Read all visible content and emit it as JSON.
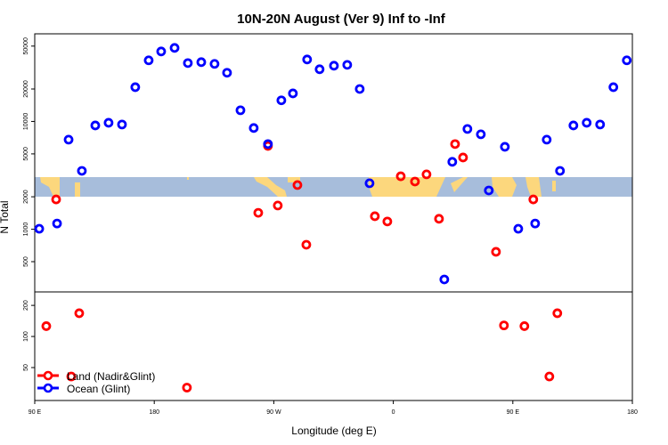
{
  "chart_data": {
    "type": "scatter",
    "title": "10N-20N August (Ver 9)   Inf to -Inf",
    "xlabel": "Longitude (deg E)",
    "ylabel": "N Total",
    "xlim": [
      90,
      540
    ],
    "x_ticks": [
      {
        "v": 90,
        "label": "90 E"
      },
      {
        "v": 180,
        "label": "180"
      },
      {
        "v": 270,
        "label": "90 W"
      },
      {
        "v": 360,
        "label": "0"
      },
      {
        "v": 450,
        "label": "90 E"
      },
      {
        "v": 540,
        "label": "180"
      }
    ],
    "panels": [
      {
        "name": "top",
        "yscale": "log",
        "ylim": [
          262,
          65000
        ],
        "y_ticks": [
          {
            "v": 500,
            "label": "500"
          },
          {
            "v": 1000,
            "label": "1000"
          },
          {
            "v": 2000,
            "label": "2000"
          },
          {
            "v": 5000,
            "label": "5000"
          },
          {
            "v": 10000,
            "label": "10000"
          },
          {
            "v": 20000,
            "label": "20000"
          },
          {
            "v": 50000,
            "label": "50000"
          }
        ]
      },
      {
        "name": "bottom",
        "yscale": "log",
        "ylim": [
          24,
          270
        ],
        "y_ticks": [
          {
            "v": 50,
            "label": "50"
          },
          {
            "v": 100,
            "label": "100"
          },
          {
            "v": 200,
            "label": "200"
          }
        ]
      }
    ],
    "series": [
      {
        "name": "Land (Nadir&Glint)",
        "color": "#ff0000",
        "panel": "top",
        "x": [
          106.1,
          258.3,
          265.6,
          273,
          287.8,
          294.5,
          346.1,
          355.5,
          365.6,
          376.3,
          385.0,
          394.4,
          406.5,
          412.5,
          437.3,
          465.4
        ],
        "y": [
          1890,
          1420,
          5930,
          1660,
          2570,
          718,
          1320,
          1180,
          3100,
          2770,
          3230,
          1250,
          6170,
          4630,
          617,
          1890
        ]
      },
      {
        "name": "Land (Nadir&Glint)",
        "color": "#ff0000",
        "panel": "bottom",
        "x": [
          98.7,
          123.5,
          117.5,
          204.6,
          443.3,
          458.7,
          477.5,
          483.5
        ],
        "y": [
          126,
          168,
          41,
          32,
          128,
          126,
          41,
          168
        ]
      },
      {
        "name": "Ocean (Glint)",
        "color": "#0000ff",
        "panel": "top",
        "x": [
          93.4,
          106.8,
          115.5,
          125.5,
          135.6,
          145.6,
          155.7,
          165.7,
          175.8,
          185.2,
          195.3,
          205.3,
          215.4,
          225.4,
          234.8,
          244.9,
          254.9,
          265.6,
          275.7,
          284.4,
          295.1,
          304.5,
          315.3,
          325.3,
          334.7,
          342.1,
          398.4,
          404.4,
          415.8,
          425.9,
          431.9,
          444.0,
          454.1,
          466.8,
          475.5,
          485.5,
          495.6,
          505.6,
          515.7,
          525.7,
          535.8
        ],
        "y": [
          1010,
          1130,
          6780,
          3480,
          9180,
          9720,
          9370,
          20800,
          36900,
          44600,
          48100,
          34800,
          35500,
          34200,
          28300,
          12700,
          8690,
          6170,
          15700,
          18200,
          37600,
          30500,
          32900,
          33500,
          20000,
          2670,
          342,
          4220,
          8520,
          7600,
          2290,
          5820,
          1010,
          1130,
          6780,
          3480,
          9180,
          9720,
          9370,
          20800,
          36900
        ]
      }
    ],
    "map_band": {
      "ocean_color": "#a7bddb",
      "land_color": "#fcd77d"
    },
    "legend": {
      "placement": "bottom-left",
      "entries": [
        {
          "label": "Land (Nadir&Glint)",
          "color": "#ff0000"
        },
        {
          "label": "Ocean (Glint)",
          "color": "#0000ff"
        }
      ]
    }
  }
}
